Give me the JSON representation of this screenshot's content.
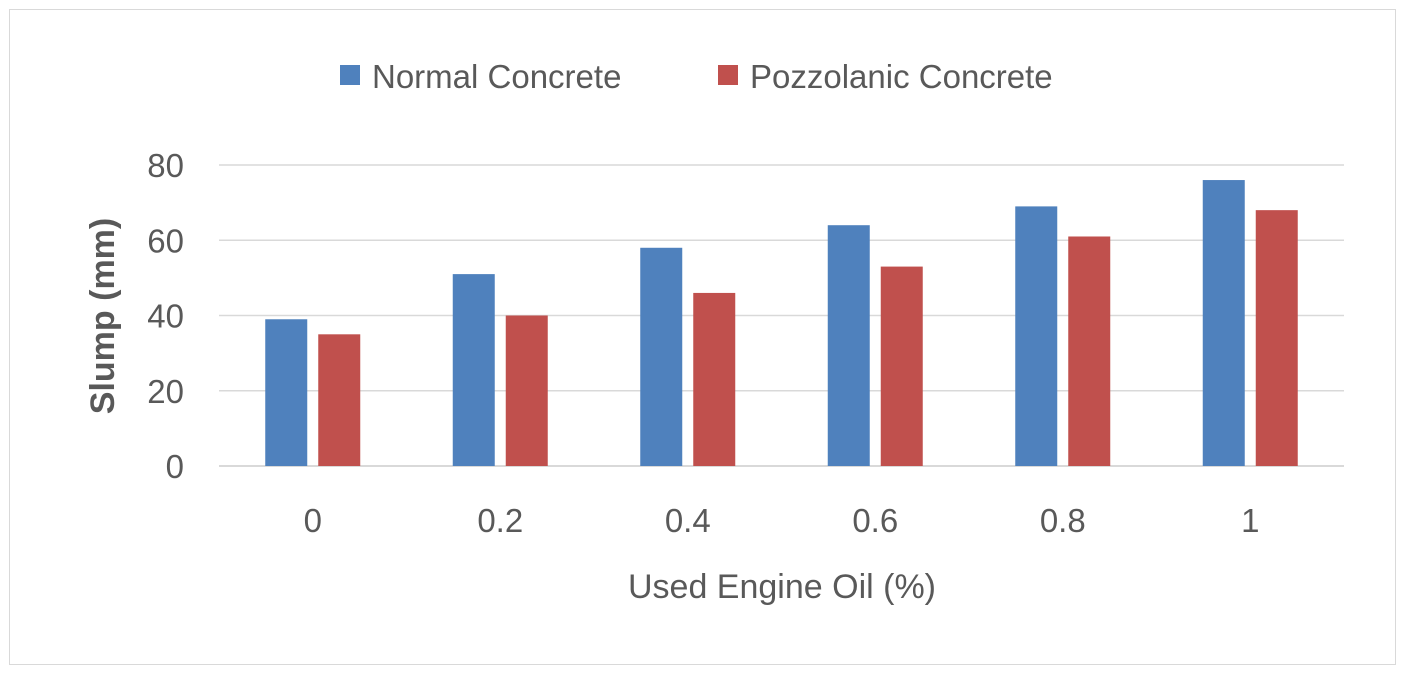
{
  "chart_data": {
    "type": "bar",
    "title": "",
    "xlabel": "Used Engine Oil (%)",
    "ylabel": "Slump (mm)",
    "categories": [
      "0",
      "0.2",
      "0.4",
      "0.6",
      "0.8",
      "1"
    ],
    "series": [
      {
        "name": "Normal Concrete",
        "color": "#4f81bd",
        "values": [
          39,
          51,
          58,
          64,
          69,
          76
        ]
      },
      {
        "name": "Pozzolanic Concrete",
        "color": "#c0504d",
        "values": [
          35,
          40,
          46,
          53,
          61,
          68
        ]
      }
    ],
    "yticks": [
      "0",
      "20",
      "40",
      "60",
      "80"
    ],
    "ylim": [
      0,
      80
    ],
    "grid": true,
    "legend_position": "top-center"
  }
}
